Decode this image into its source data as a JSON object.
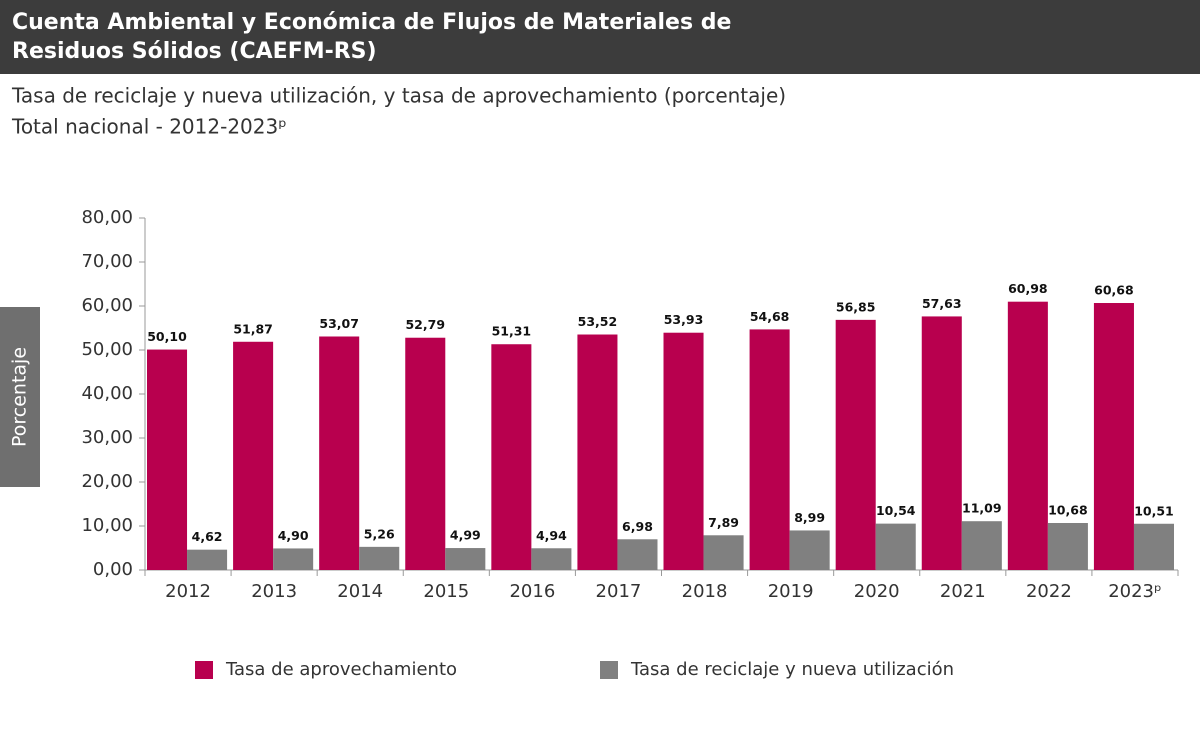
{
  "chart_data": {
    "type": "bar",
    "title": [
      "Cuenta Ambiental y Económica de Flujos de Materiales de",
      "Residuos Sólidos (CAEFM-RS)"
    ],
    "subtitle": [
      "Tasa de reciclaje y nueva utilización, y tasa de aprovechamiento (porcentaje)",
      "Total nacional - 2012-2023ᵖ"
    ],
    "y_label": "Porcentaje",
    "categories": [
      "2012",
      "2013",
      "2014",
      "2015",
      "2016",
      "2017",
      "2018",
      "2019",
      "2020",
      "2021",
      "2022",
      "2023ᵖ"
    ],
    "series": [
      {
        "name": "Tasa de aprovechamiento",
        "color": "#b8004e",
        "values": [
          50.1,
          51.87,
          53.07,
          52.79,
          51.31,
          53.52,
          53.93,
          54.68,
          56.85,
          57.63,
          60.98,
          60.68
        ],
        "value_labels": [
          "50,10",
          "51,87",
          "53,07",
          "52,79",
          "51,31",
          "53,52",
          "53,93",
          "54,68",
          "56,85",
          "57,63",
          "60,98",
          "60,68"
        ]
      },
      {
        "name": "Tasa de reciclaje y nueva utilización",
        "color": "#808080",
        "values": [
          4.62,
          4.9,
          5.26,
          4.99,
          4.94,
          6.98,
          7.89,
          8.99,
          10.54,
          11.09,
          10.68,
          10.51
        ],
        "value_labels": [
          "4,62",
          "4,90",
          "5,26",
          "4,99",
          "4,94",
          "6,98",
          "7,89",
          "8,99",
          "10,54",
          "11,09",
          "10,68",
          "10,51"
        ]
      }
    ],
    "ylim": [
      0,
      80
    ],
    "yticks": [
      {
        "value": 0,
        "label": "0,00"
      },
      {
        "value": 10,
        "label": "10,00"
      },
      {
        "value": 20,
        "label": "20,00"
      },
      {
        "value": 30,
        "label": "30,00"
      },
      {
        "value": 40,
        "label": "40,00"
      },
      {
        "value": 50,
        "label": "50,00"
      },
      {
        "value": 60,
        "label": "60,00"
      },
      {
        "value": 70,
        "label": "70,00"
      },
      {
        "value": 80,
        "label": "80,00"
      }
    ],
    "grid": false
  }
}
